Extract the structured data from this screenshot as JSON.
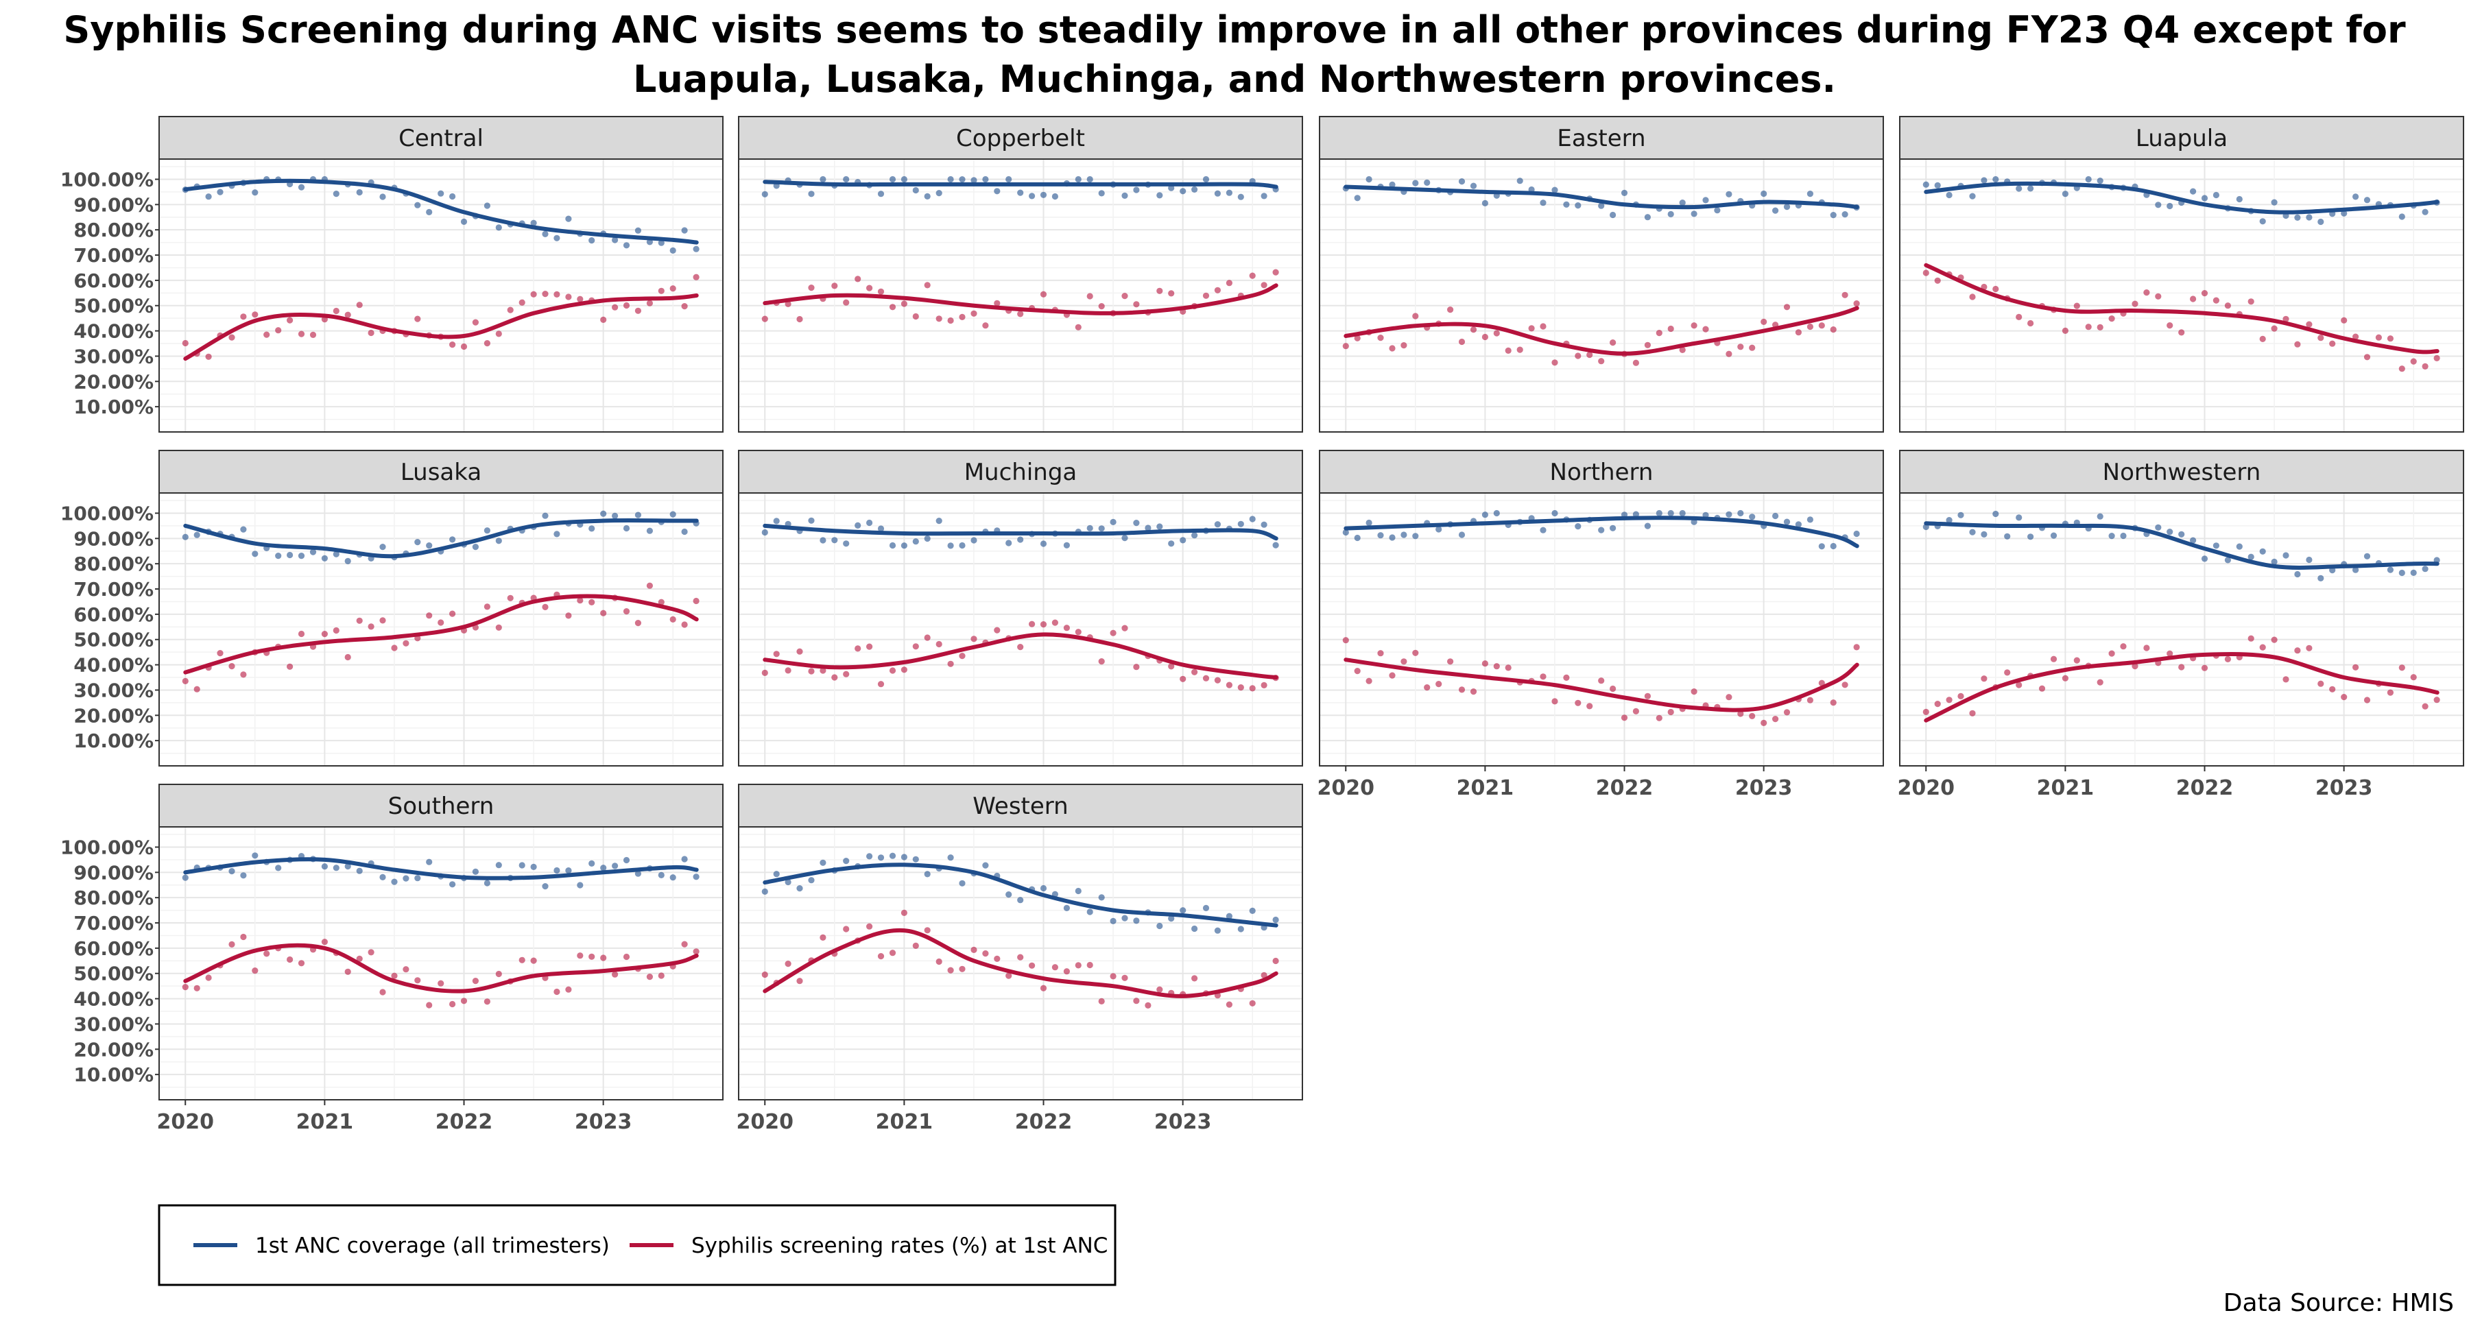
{
  "title_lines": [
    "Syphilis Screening during ANC visits seems to steadily improve in all other provinces during FY23 Q4 except for",
    "Luapula, Lusaka, Muchinga, and Northwestern provinces."
  ],
  "source": "Data Source: HMIS",
  "colors": {
    "coverage": "#1f4e8c",
    "syphilis": "#b5123c"
  },
  "chart_data": {
    "type": "line",
    "title": "Syphilis Screening during ANC visits seems to steadily improve in all other provinces during FY23 Q4 except for Luapula, Lusaka, Muchinga, and Northwestern provinces.",
    "facet_layout": "wrap 4 columns x 3 rows",
    "x_axis": {
      "ticks": [
        "2020",
        "2021",
        "2022",
        "2023"
      ],
      "range": [
        "2020-01",
        "2023-09"
      ]
    },
    "y_axis": {
      "ticks": [
        "10.00%",
        "20.00%",
        "30.00%",
        "40.00%",
        "50.00%",
        "60.00%",
        "70.00%",
        "80.00%",
        "90.00%",
        "100.00%"
      ],
      "range": [
        0,
        100
      ]
    },
    "legend": {
      "position": "bottom-left",
      "items": [
        "1st ANC coverage (all trimesters)",
        "Syphilis screening rates (%) at 1st ANC"
      ]
    },
    "smooth_x": [
      2020.0,
      2020.5,
      2021.0,
      2021.5,
      2022.0,
      2022.5,
      2023.0,
      2023.5,
      2023.67
    ],
    "panels": [
      {
        "name": "Central",
        "series": [
          {
            "name": "1st ANC coverage (all trimesters)",
            "smooth": [
              96,
              99,
              99,
              96,
              87,
              81,
              78,
              76,
              75
            ]
          },
          {
            "name": "Syphilis screening rates (%) at 1st ANC",
            "smooth": [
              29,
              44,
              46,
              40,
              38,
              47,
              52,
              53,
              54
            ]
          }
        ]
      },
      {
        "name": "Copperbelt",
        "series": [
          {
            "name": "1st ANC coverage (all trimesters)",
            "smooth": [
              99,
              98,
              98,
              98,
              98,
              98,
              98,
              98,
              97
            ]
          },
          {
            "name": "Syphilis screening rates (%) at 1st ANC",
            "smooth": [
              51,
              54,
              53,
              50,
              48,
              47,
              49,
              54,
              58
            ]
          }
        ]
      },
      {
        "name": "Eastern",
        "series": [
          {
            "name": "1st ANC coverage (all trimesters)",
            "smooth": [
              97,
              96,
              95,
              94,
              90,
              89,
              91,
              90,
              89
            ]
          },
          {
            "name": "Syphilis screening rates (%) at 1st ANC",
            "smooth": [
              38,
              42,
              42,
              35,
              31,
              35,
              40,
              46,
              49
            ]
          }
        ]
      },
      {
        "name": "Luapula",
        "series": [
          {
            "name": "1st ANC coverage (all trimesters)",
            "smooth": [
              95,
              98,
              98,
              96,
              90,
              87,
              88,
              90,
              91
            ]
          },
          {
            "name": "Syphilis screening rates (%) at 1st ANC",
            "smooth": [
              66,
              54,
              48,
              48,
              47,
              44,
              37,
              32,
              32
            ]
          }
        ]
      },
      {
        "name": "Lusaka",
        "series": [
          {
            "name": "1st ANC coverage (all trimesters)",
            "smooth": [
              95,
              88,
              86,
              83,
              88,
              95,
              97,
              97,
              97
            ]
          },
          {
            "name": "Syphilis screening rates (%) at 1st ANC",
            "smooth": [
              37,
              45,
              49,
              51,
              55,
              65,
              67,
              62,
              58
            ]
          }
        ]
      },
      {
        "name": "Muchinga",
        "series": [
          {
            "name": "1st ANC coverage (all trimesters)",
            "smooth": [
              95,
              93,
              92,
              92,
              92,
              92,
              93,
              93,
              90
            ]
          },
          {
            "name": "Syphilis screening rates (%) at 1st ANC",
            "smooth": [
              42,
              39,
              41,
              47,
              52,
              48,
              40,
              36,
              35
            ]
          }
        ]
      },
      {
        "name": "Northern",
        "series": [
          {
            "name": "1st ANC coverage (all trimesters)",
            "smooth": [
              94,
              95,
              96,
              97,
              98,
              98,
              96,
              91,
              87
            ]
          },
          {
            "name": "Syphilis screening rates (%) at 1st ANC",
            "smooth": [
              42,
              38,
              35,
              32,
              27,
              23,
              23,
              33,
              40
            ]
          }
        ]
      },
      {
        "name": "Northwestern",
        "series": [
          {
            "name": "1st ANC coverage (all trimesters)",
            "smooth": [
              96,
              95,
              95,
              94,
              86,
              79,
              79,
              80,
              80
            ]
          },
          {
            "name": "Syphilis screening rates (%) at 1st ANC",
            "smooth": [
              18,
              31,
              38,
              41,
              44,
              43,
              35,
              31,
              29
            ]
          }
        ]
      },
      {
        "name": "Southern",
        "series": [
          {
            "name": "1st ANC coverage (all trimesters)",
            "smooth": [
              90,
              94,
              95,
              91,
              88,
              88,
              90,
              92,
              91
            ]
          },
          {
            "name": "Syphilis screening rates (%) at 1st ANC",
            "smooth": [
              47,
              59,
              60,
              47,
              43,
              49,
              51,
              54,
              57
            ]
          }
        ]
      },
      {
        "name": "Western",
        "series": [
          {
            "name": "1st ANC coverage (all trimesters)",
            "smooth": [
              86,
              91,
              93,
              90,
              81,
              75,
              73,
              70,
              69
            ]
          },
          {
            "name": "Syphilis screening rates (%) at 1st ANC",
            "smooth": [
              43,
              59,
              67,
              55,
              48,
              45,
              41,
              46,
              50
            ]
          }
        ]
      }
    ]
  }
}
